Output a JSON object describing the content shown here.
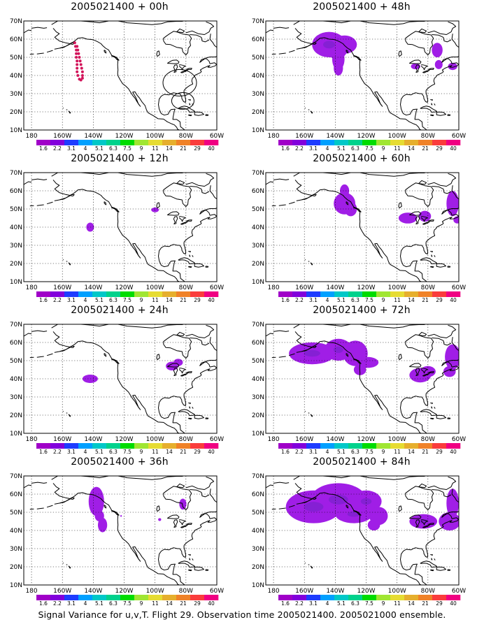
{
  "figure": {
    "caption": "Signal Variance for u,v,T. Flight 29. Observation time 2005021400. 2005021000 ensemble."
  },
  "map_axes": {
    "lon_ticks": [
      "180",
      "160W",
      "140W",
      "120W",
      "100W",
      "80W",
      "60W"
    ],
    "lat_ticks": [
      "10N",
      "20N",
      "30N",
      "40N",
      "50N",
      "60N",
      "70N"
    ],
    "lon_range_deg_east": [
      -185,
      -60
    ],
    "lat_range": [
      10,
      70
    ],
    "gridlines": "dotted"
  },
  "colorbar": {
    "labels": [
      "1.6",
      "2.2",
      "3.1",
      "4",
      "5.1",
      "6.3",
      "7.5",
      "9",
      "11",
      "14",
      "21",
      "29",
      "40"
    ],
    "colors": [
      "#a000c8",
      "#8200dc",
      "#1e3cff",
      "#00a0ff",
      "#00c8c8",
      "#00d28c",
      "#00dc00",
      "#a0e632",
      "#e6dc32",
      "#e6af2d",
      "#f08228",
      "#fa3c3c",
      "#f00082"
    ]
  },
  "panels": [
    {
      "title": "2005021400 + 00h"
    },
    {
      "title": "2005021400 + 48h"
    },
    {
      "title": "2005021400 + 12h"
    },
    {
      "title": "2005021400 + 60h"
    },
    {
      "title": "2005021400 + 24h"
    },
    {
      "title": "2005021400 + 72h"
    },
    {
      "title": "2005021400 + 36h"
    },
    {
      "title": "2005021400 + 84h"
    }
  ],
  "shading": {
    "base_color": "#a01ee6",
    "core_color": "#8220d2"
  },
  "flight_track": {
    "color": "#d2145a",
    "points": [
      [
        -152,
        58
      ],
      [
        -151.5,
        56
      ],
      [
        -151,
        54
      ],
      [
        -151,
        52
      ],
      [
        -151,
        50
      ],
      [
        -150.5,
        48
      ],
      [
        -150.5,
        46
      ],
      [
        -150.5,
        44
      ],
      [
        -150.5,
        42
      ],
      [
        -150,
        40
      ],
      [
        -149,
        38
      ],
      [
        -148,
        37.5
      ],
      [
        -147,
        38.5
      ],
      [
        -147,
        40
      ],
      [
        -147,
        42
      ],
      [
        -147.5,
        44
      ],
      [
        -148,
        46
      ],
      [
        -148.5,
        48
      ],
      [
        -149,
        50
      ],
      [
        -149.5,
        52
      ],
      [
        -150,
        54
      ],
      [
        -150.5,
        56
      ]
    ]
  },
  "signal_regions": [
    [],
    [
      {
        "lon": -144,
        "lat": 57,
        "rx": 11,
        "ry": 7
      },
      {
        "lon": -139,
        "lat": 55,
        "rx": 7,
        "ry": 6
      },
      {
        "lon": -134,
        "lat": 57,
        "rx": 8,
        "ry": 5
      },
      {
        "lon": -138,
        "lat": 49,
        "rx": 4,
        "ry": 6
      },
      {
        "lon": -138,
        "lat": 44,
        "rx": 3,
        "ry": 4
      },
      {
        "lon": -74,
        "lat": 54,
        "rx": 3.5,
        "ry": 4
      },
      {
        "lon": -73,
        "lat": 46,
        "rx": 2.5,
        "ry": 2.5
      },
      {
        "lon": -64,
        "lat": 45,
        "rx": 3,
        "ry": 2
      },
      {
        "lon": -88,
        "lat": 45,
        "rx": 3,
        "ry": 1.6
      }
    ],
    [
      {
        "lon": -142,
        "lat": 40,
        "rx": 2.5,
        "ry": 2.5
      },
      {
        "lon": -100,
        "lat": 49.5,
        "rx": 2.5,
        "ry": 1.3
      }
    ],
    [
      {
        "lon": -134,
        "lat": 60,
        "rx": 3,
        "ry": 3.5
      },
      {
        "lon": -134,
        "lat": 53,
        "rx": 7,
        "ry": 6
      },
      {
        "lon": -130,
        "lat": 50,
        "rx": 4,
        "ry": 4
      },
      {
        "lon": -93,
        "lat": 45,
        "rx": 6,
        "ry": 3
      },
      {
        "lon": -82,
        "lat": 46,
        "rx": 4,
        "ry": 3
      },
      {
        "lon": -64,
        "lat": 53,
        "rx": 4,
        "ry": 7
      },
      {
        "lon": -61,
        "lat": 44,
        "rx": 2.5,
        "ry": 2
      }
    ],
    [
      {
        "lon": -142,
        "lat": 40,
        "rx": 5,
        "ry": 2.3
      },
      {
        "lon": -89,
        "lat": 47,
        "rx": 4,
        "ry": 2.4
      },
      {
        "lon": -85,
        "lat": 49,
        "rx": 3,
        "ry": 2
      }
    ],
    [
      {
        "lon": -155,
        "lat": 54,
        "rx": 15,
        "ry": 6
      },
      {
        "lon": -138,
        "lat": 56,
        "rx": 9,
        "ry": 6
      },
      {
        "lon": -127,
        "lat": 54,
        "rx": 8,
        "ry": 7
      },
      {
        "lon": -119,
        "lat": 49,
        "rx": 7,
        "ry": 3
      },
      {
        "lon": -124,
        "lat": 45,
        "rx": 4,
        "ry": 3
      },
      {
        "lon": -85,
        "lat": 42,
        "rx": 7,
        "ry": 4
      },
      {
        "lon": -80,
        "lat": 44,
        "rx": 5,
        "ry": 3
      },
      {
        "lon": -64,
        "lat": 52,
        "rx": 5,
        "ry": 7
      },
      {
        "lon": -66,
        "lat": 44,
        "rx": 4,
        "ry": 3
      }
    ],
    [
      {
        "lon": -138,
        "lat": 56,
        "rx": 5,
        "ry": 8
      },
      {
        "lon": -134,
        "lat": 43,
        "rx": 3,
        "ry": 4
      },
      {
        "lon": -136,
        "lat": 48,
        "rx": 3,
        "ry": 3
      },
      {
        "lon": -82,
        "lat": 54.5,
        "rx": 2.3,
        "ry": 3
      },
      {
        "lon": -97,
        "lat": 46,
        "rx": 1,
        "ry": 0.8
      },
      {
        "lon": -122,
        "lat": 48,
        "rx": 0.5,
        "ry": 0.5
      }
    ],
    [
      {
        "lon": -154,
        "lat": 53,
        "rx": 18,
        "ry": 9
      },
      {
        "lon": -138,
        "lat": 57,
        "rx": 18,
        "ry": 9
      },
      {
        "lon": -120,
        "lat": 56,
        "rx": 10,
        "ry": 6
      },
      {
        "lon": -128,
        "lat": 49,
        "rx": 12,
        "ry": 5
      },
      {
        "lon": -112,
        "lat": 48,
        "rx": 6,
        "ry": 5
      },
      {
        "lon": -115,
        "lat": 43,
        "rx": 4,
        "ry": 3
      },
      {
        "lon": -83,
        "lat": 45,
        "rx": 9,
        "ry": 4
      },
      {
        "lon": -66,
        "lat": 45,
        "rx": 7,
        "ry": 5
      },
      {
        "lon": -64,
        "lat": 55,
        "rx": 4,
        "ry": 8
      }
    ]
  ]
}
